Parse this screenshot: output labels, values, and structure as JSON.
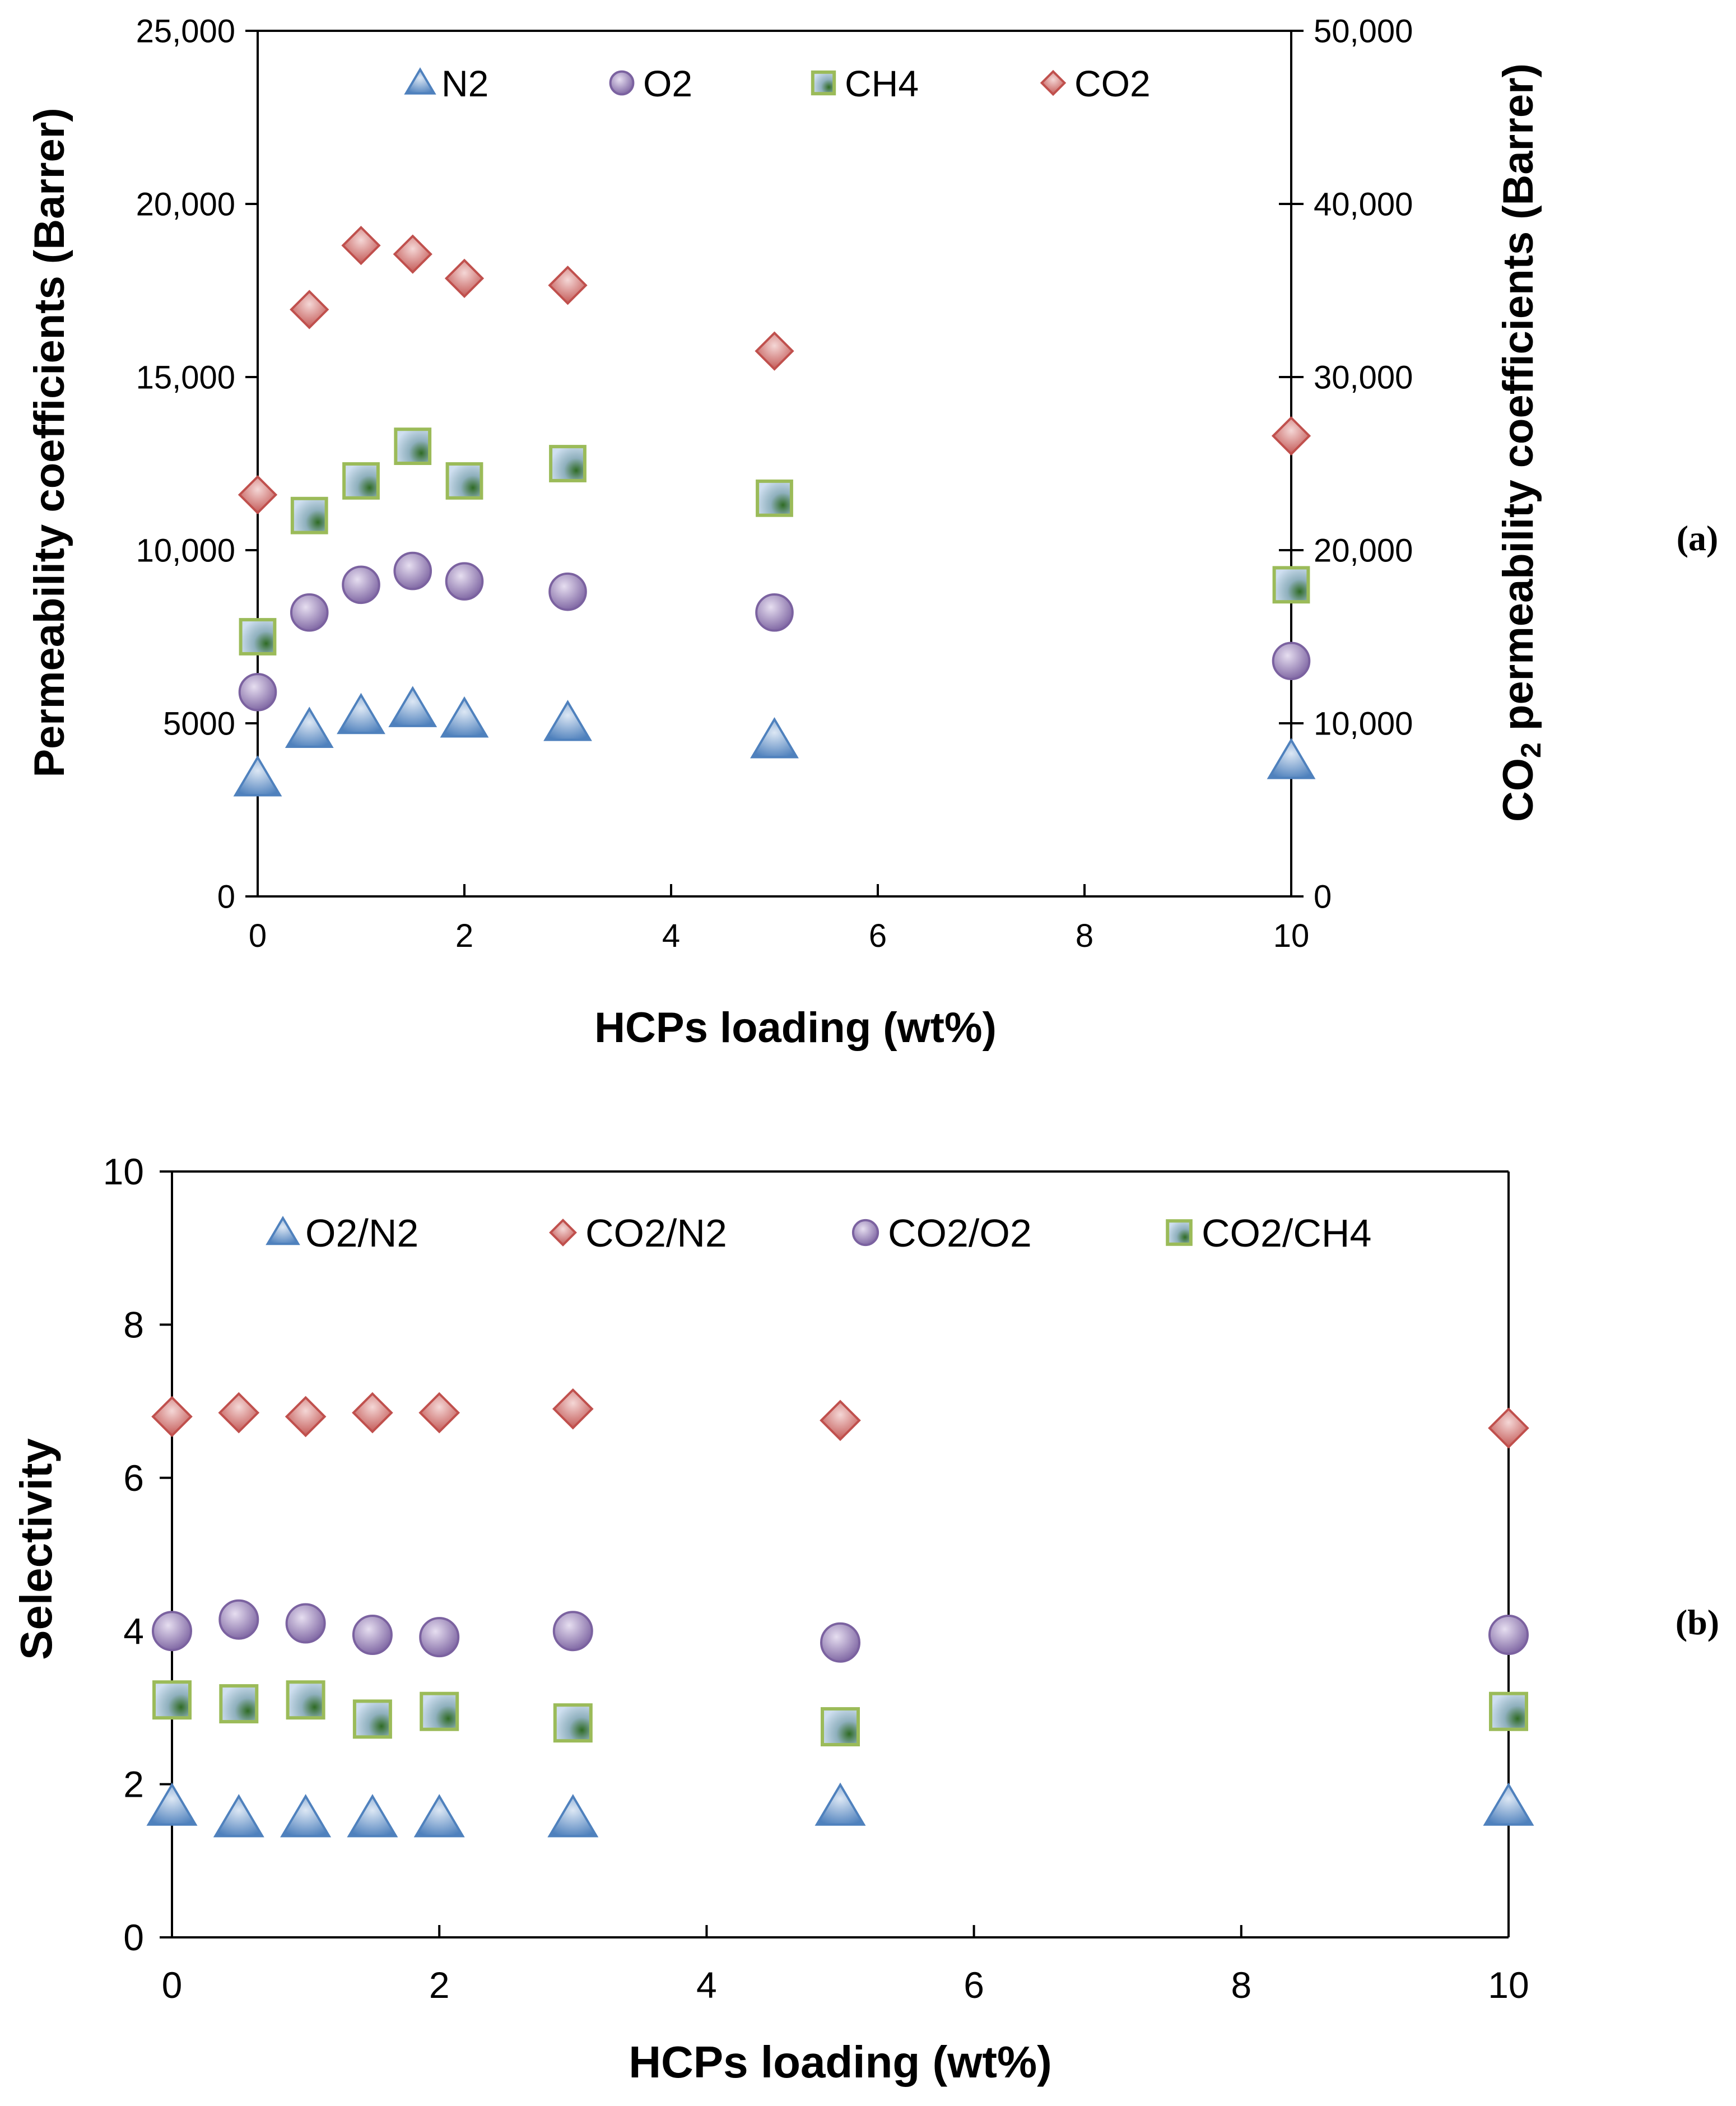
{
  "chart_data": [
    {
      "panel_label": "(a)",
      "type": "scatter",
      "xlabel": "HCPs loading (wt%)",
      "ylabel": "Permeability coefficients (Barrer)",
      "y2label": {
        "prefix": "CO",
        "subscript": "2",
        "suffix": " permeability coefficients (Barrer)"
      },
      "xlim": [
        0,
        10
      ],
      "ylim": [
        0,
        25000
      ],
      "y2lim": [
        0,
        50000
      ],
      "x_ticks": [
        "0",
        "2",
        "4",
        "6",
        "8",
        "10"
      ],
      "y_ticks": [
        "0",
        "5000",
        "10,000",
        "15,000",
        "20,000",
        "25,000"
      ],
      "y2_ticks": [
        "0",
        "10,000",
        "20,000",
        "30,000",
        "40,000",
        "50,000"
      ],
      "grid": false,
      "legend_position": "top",
      "series": [
        {
          "name": "N2",
          "marker": "triangle",
          "axis": "left",
          "color": "#4f81bd",
          "x": [
            0,
            0.5,
            1,
            1.5,
            2,
            3,
            5,
            10
          ],
          "y": [
            3400,
            4800,
            5200,
            5400,
            5100,
            5000,
            4500,
            3900
          ]
        },
        {
          "name": "O2",
          "marker": "circle",
          "axis": "left",
          "color": "#8064a2",
          "x": [
            0,
            0.5,
            1,
            1.5,
            2,
            3,
            5,
            10
          ],
          "y": [
            5900,
            8200,
            9000,
            9400,
            9100,
            8800,
            8200,
            6800
          ]
        },
        {
          "name": "CH4",
          "marker": "square",
          "axis": "left",
          "color": "#9bbb59",
          "x": [
            0,
            0.5,
            1,
            1.5,
            2,
            3,
            5,
            10
          ],
          "y": [
            7500,
            11000,
            12000,
            13000,
            12000,
            12500,
            11500,
            9000
          ]
        },
        {
          "name": "CO2",
          "marker": "diamond",
          "axis": "right",
          "color": "#c0504d",
          "x": [
            0,
            0.5,
            1,
            1.5,
            2,
            3,
            5,
            10
          ],
          "y": [
            23200,
            33900,
            37600,
            37100,
            35700,
            35300,
            31500,
            26600
          ]
        }
      ]
    },
    {
      "panel_label": "(b)",
      "type": "scatter",
      "xlabel": "HCPs loading (wt%)",
      "ylabel": "Selectivity",
      "xlim": [
        0,
        10
      ],
      "ylim": [
        0,
        10
      ],
      "x_ticks": [
        "0",
        "2",
        "4",
        "6",
        "8",
        "10"
      ],
      "y_ticks": [
        "0",
        "2",
        "4",
        "6",
        "8",
        "10"
      ],
      "grid": false,
      "legend_position": "top",
      "series": [
        {
          "name": "O2/N2",
          "marker": "triangle",
          "color": "#4f81bd",
          "x": [
            0,
            0.5,
            1,
            1.5,
            2,
            3,
            5,
            10
          ],
          "y": [
            1.7,
            1.55,
            1.55,
            1.55,
            1.55,
            1.55,
            1.7,
            1.7
          ]
        },
        {
          "name": "CO2/N2",
          "marker": "diamond",
          "color": "#c0504d",
          "x": [
            0,
            0.5,
            1,
            1.5,
            2,
            3,
            5,
            10
          ],
          "y": [
            6.8,
            6.85,
            6.8,
            6.85,
            6.85,
            6.9,
            6.75,
            6.65
          ]
        },
        {
          "name": "CO2/O2",
          "marker": "circle",
          "color": "#8064a2",
          "x": [
            0,
            0.5,
            1,
            1.5,
            2,
            3,
            5,
            10
          ],
          "y": [
            4.0,
            4.15,
            4.1,
            3.95,
            3.92,
            4.0,
            3.85,
            3.95
          ]
        },
        {
          "name": "CO2/CH4",
          "marker": "square",
          "color": "#9bbb59",
          "x": [
            0,
            0.5,
            1,
            1.5,
            2,
            3,
            5,
            10
          ],
          "y": [
            3.1,
            3.05,
            3.1,
            2.85,
            2.95,
            2.8,
            2.75,
            2.95
          ]
        }
      ]
    }
  ]
}
